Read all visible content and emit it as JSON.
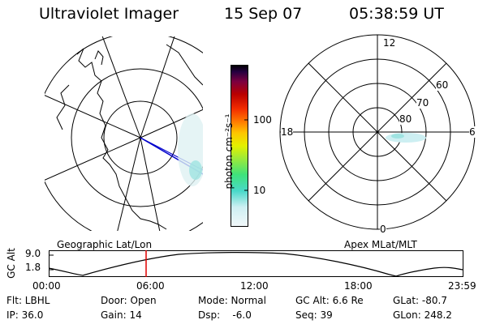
{
  "header": {
    "instrument": "Ultraviolet Imager",
    "date": "15 Sep 07",
    "time": "05:38:59 UT"
  },
  "colorbar": {
    "unit_label": "photon cm⁻²s⁻¹",
    "tick_100": "100",
    "tick_10": "10",
    "colors": [
      "#e9f4f7",
      "#49d9c9",
      "#3fe27b",
      "#9be93a",
      "#e3f000",
      "#ffc500",
      "#ff7a00",
      "#f22c00",
      "#b90000",
      "#7b0040",
      "#240040",
      "#000000"
    ]
  },
  "geographic_map": {
    "label": "Geographic Lat/Lon"
  },
  "polar_plot": {
    "label": "Apex MLat/MLT",
    "mlt_12": "12",
    "mlt_18": "18",
    "mlt_6": "6",
    "mlt_0": "0",
    "lat_60": "60",
    "lat_70": "70",
    "lat_80": "80"
  },
  "altitude_plot": {
    "ylabel": "GC Alt",
    "y_top": "9.0",
    "y_bottom": "1.8",
    "x_ticks": [
      "00:00",
      "06:00",
      "12:00",
      "18:00",
      "23:59"
    ],
    "marker_time": "05:38:59"
  },
  "info": {
    "flt": "Flt: LBHL",
    "ip": "IP: 36.0",
    "door": "Door: Open",
    "gain": "Gain: 14",
    "mode": "Mode: Normal",
    "dsp": "Dsp:    -6.0",
    "gc_alt": "GC Alt: 6.6 Re",
    "seq": "Seq: 39",
    "glat": "GLat: -80.7",
    "glon": "GLon: 248.2"
  }
}
